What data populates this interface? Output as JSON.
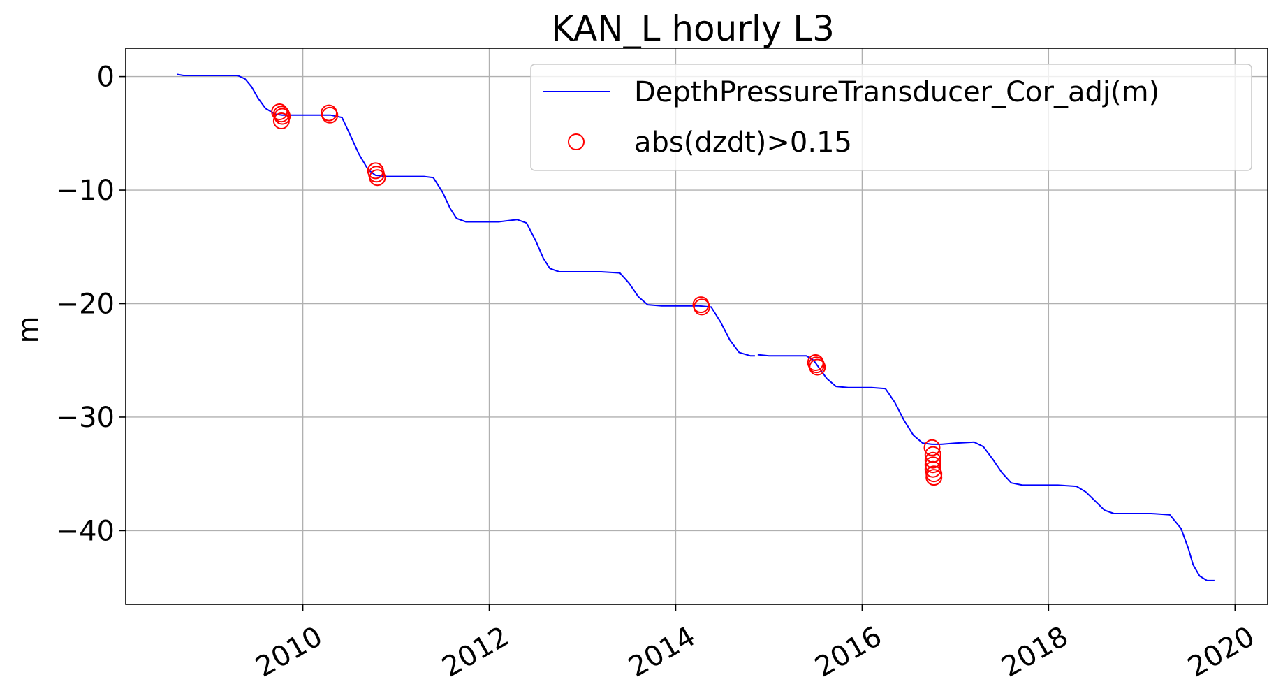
{
  "chart_data": {
    "type": "line",
    "title": "KAN_L hourly L3",
    "xlabel": "",
    "ylabel": "m",
    "xlim": [
      2008.1,
      2020.35
    ],
    "ylim": [
      -46.5,
      2.5
    ],
    "x_ticks": [
      2010,
      2012,
      2014,
      2016,
      2018,
      2020
    ],
    "x_tick_labels": [
      "2010",
      "2012",
      "2014",
      "2016",
      "2018",
      "2020"
    ],
    "y_ticks": [
      0,
      -10,
      -20,
      -30,
      -40
    ],
    "y_tick_labels": [
      "0",
      "−10",
      "−20",
      "−30",
      "−40"
    ],
    "grid": true,
    "legend_position": "top-right",
    "colors": {
      "line": "#0000ff",
      "markers": "#ff0000"
    },
    "series": [
      {
        "name": "DepthPressureTransducer_Cor_adj(m)",
        "kind": "line",
        "segments": [
          [
            [
              2008.65,
              0.2
            ],
            [
              2008.72,
              0.1
            ],
            [
              2009.0,
              0.1
            ],
            [
              2009.3,
              0.1
            ],
            [
              2009.38,
              -0.2
            ],
            [
              2009.45,
              -0.9
            ],
            [
              2009.52,
              -1.9
            ],
            [
              2009.6,
              -2.8
            ],
            [
              2009.7,
              -3.3
            ],
            [
              2009.78,
              -3.4
            ],
            [
              2009.9,
              -3.4
            ],
            [
              2010.1,
              -3.4
            ],
            [
              2010.3,
              -3.4
            ],
            [
              2010.42,
              -3.6
            ],
            [
              2010.5,
              -5.0
            ],
            [
              2010.6,
              -6.8
            ],
            [
              2010.7,
              -8.2
            ],
            [
              2010.78,
              -8.7
            ],
            [
              2010.9,
              -8.8
            ],
            [
              2011.1,
              -8.8
            ],
            [
              2011.3,
              -8.8
            ],
            [
              2011.4,
              -8.9
            ],
            [
              2011.5,
              -10.2
            ],
            [
              2011.58,
              -11.6
            ],
            [
              2011.65,
              -12.5
            ],
            [
              2011.75,
              -12.8
            ],
            [
              2011.9,
              -12.8
            ],
            [
              2012.1,
              -12.8
            ],
            [
              2012.3,
              -12.6
            ],
            [
              2012.4,
              -12.9
            ],
            [
              2012.5,
              -14.5
            ],
            [
              2012.58,
              -16.0
            ],
            [
              2012.65,
              -16.9
            ],
            [
              2012.75,
              -17.2
            ],
            [
              2012.95,
              -17.2
            ],
            [
              2013.2,
              -17.2
            ],
            [
              2013.4,
              -17.3
            ],
            [
              2013.5,
              -18.2
            ],
            [
              2013.6,
              -19.4
            ],
            [
              2013.7,
              -20.1
            ],
            [
              2013.85,
              -20.2
            ],
            [
              2014.05,
              -20.2
            ],
            [
              2014.25,
              -20.2
            ],
            [
              2014.38,
              -20.3
            ],
            [
              2014.48,
              -21.6
            ],
            [
              2014.58,
              -23.2
            ],
            [
              2014.68,
              -24.3
            ],
            [
              2014.8,
              -24.6
            ],
            [
              2014.85,
              -24.6
            ]
          ],
          [
            [
              2014.88,
              -24.5
            ],
            [
              2015.0,
              -24.6
            ],
            [
              2015.2,
              -24.6
            ],
            [
              2015.4,
              -24.6
            ],
            [
              2015.48,
              -25.0
            ],
            [
              2015.55,
              -25.8
            ],
            [
              2015.62,
              -26.6
            ],
            [
              2015.72,
              -27.3
            ],
            [
              2015.85,
              -27.4
            ],
            [
              2016.1,
              -27.4
            ],
            [
              2016.25,
              -27.5
            ],
            [
              2016.35,
              -28.7
            ],
            [
              2016.45,
              -30.3
            ],
            [
              2016.55,
              -31.6
            ],
            [
              2016.65,
              -32.3
            ],
            [
              2016.75,
              -32.4
            ],
            [
              2016.85,
              -32.4
            ],
            [
              2017.0,
              -32.3
            ],
            [
              2017.2,
              -32.2
            ],
            [
              2017.3,
              -32.6
            ],
            [
              2017.4,
              -33.7
            ],
            [
              2017.5,
              -34.9
            ],
            [
              2017.6,
              -35.8
            ],
            [
              2017.72,
              -36.0
            ],
            [
              2017.9,
              -36.0
            ],
            [
              2018.1,
              -36.0
            ],
            [
              2018.3,
              -36.1
            ],
            [
              2018.4,
              -36.6
            ],
            [
              2018.5,
              -37.4
            ],
            [
              2018.6,
              -38.2
            ],
            [
              2018.7,
              -38.5
            ],
            [
              2018.9,
              -38.5
            ],
            [
              2019.1,
              -38.5
            ],
            [
              2019.3,
              -38.6
            ],
            [
              2019.42,
              -39.8
            ],
            [
              2019.5,
              -41.6
            ],
            [
              2019.55,
              -43.0
            ],
            [
              2019.62,
              -44.0
            ],
            [
              2019.7,
              -44.4
            ],
            [
              2019.78,
              -44.4
            ]
          ]
        ]
      },
      {
        "name": "abs(dzdt)>0.15",
        "kind": "scatter",
        "marker": "open-circle",
        "points": [
          [
            2009.75,
            -3.1
          ],
          [
            2009.77,
            -3.3
          ],
          [
            2009.78,
            -3.5
          ],
          [
            2009.77,
            -3.9
          ],
          [
            2010.28,
            -3.2
          ],
          [
            2010.29,
            -3.4
          ],
          [
            2010.78,
            -8.3
          ],
          [
            2010.79,
            -8.6
          ],
          [
            2010.8,
            -8.9
          ],
          [
            2014.27,
            -20.1
          ],
          [
            2014.28,
            -20.3
          ],
          [
            2015.5,
            -25.2
          ],
          [
            2015.51,
            -25.4
          ],
          [
            2015.52,
            -25.6
          ],
          [
            2016.75,
            -32.7
          ],
          [
            2016.76,
            -33.3
          ],
          [
            2016.76,
            -33.8
          ],
          [
            2016.76,
            -34.2
          ],
          [
            2016.76,
            -34.6
          ],
          [
            2016.77,
            -35.0
          ],
          [
            2016.77,
            -35.3
          ]
        ]
      }
    ]
  }
}
